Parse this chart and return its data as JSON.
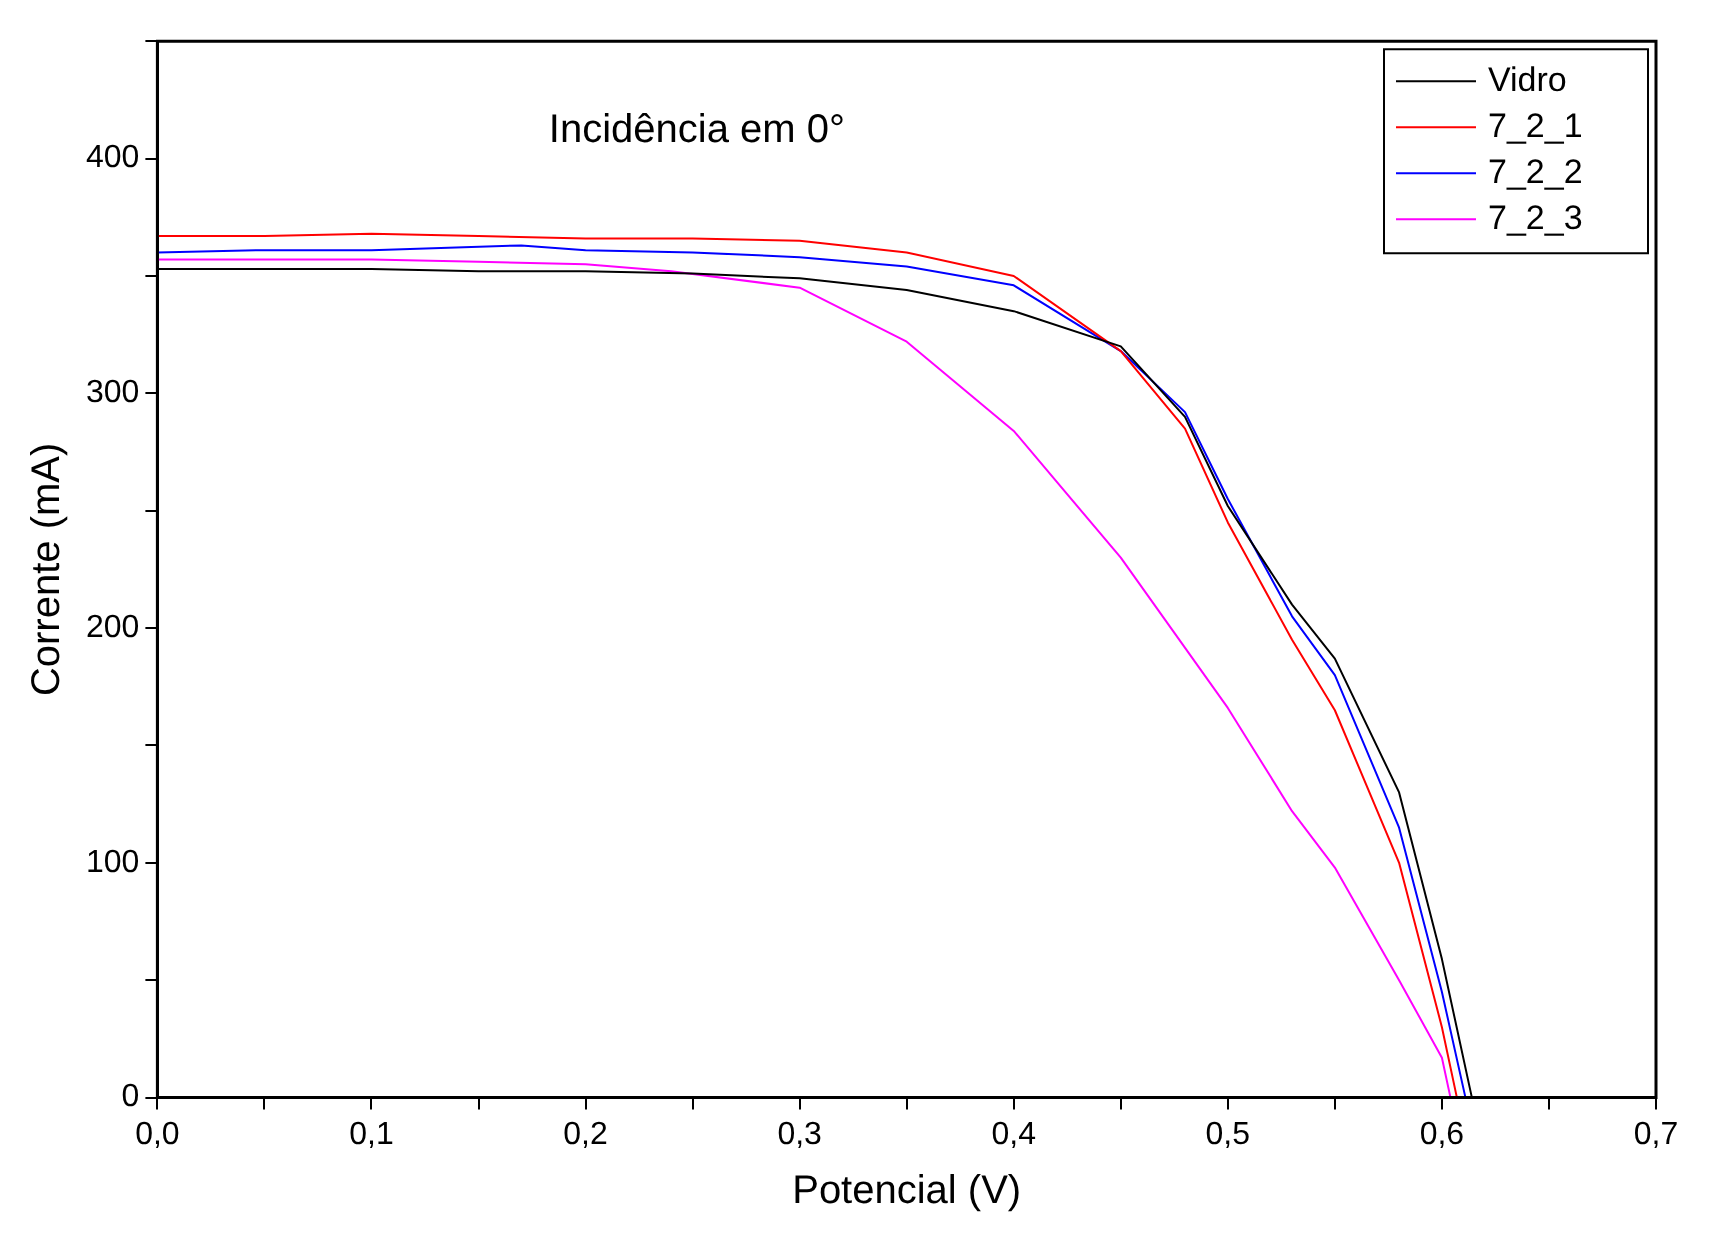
{
  "chart_data": {
    "type": "line",
    "xlabel": "Potencial (V)",
    "ylabel": "Corrente (mA)",
    "annotations": [
      "Incidência em 0°"
    ],
    "xlim": [
      0,
      0.7
    ],
    "ylim": [
      0,
      450
    ],
    "xticks": [
      {
        "value": 0,
        "label": "0,0"
      },
      {
        "value": 0.05,
        "label": null
      },
      {
        "value": 0.1,
        "label": "0,1"
      },
      {
        "value": 0.15,
        "label": null
      },
      {
        "value": 0.2,
        "label": "0,2"
      },
      {
        "value": 0.25,
        "label": null
      },
      {
        "value": 0.3,
        "label": "0,3"
      },
      {
        "value": 0.35,
        "label": null
      },
      {
        "value": 0.4,
        "label": "0,4"
      },
      {
        "value": 0.45,
        "label": null
      },
      {
        "value": 0.5,
        "label": "0,5"
      },
      {
        "value": 0.55,
        "label": null
      },
      {
        "value": 0.6,
        "label": "0,6"
      },
      {
        "value": 0.65,
        "label": null
      },
      {
        "value": 0.7,
        "label": "0,7"
      }
    ],
    "yticks": [
      0,
      {
        "value": 50,
        "label": null
      },
      100,
      {
        "value": 150,
        "label": null
      },
      200,
      {
        "value": 250,
        "label": null
      },
      300,
      {
        "value": 350,
        "label": null
      },
      400,
      {
        "value": 450,
        "label": null
      }
    ],
    "grid": false,
    "legend": "top right",
    "marker": "none",
    "line_style": "solid",
    "series": [
      {
        "name": "Vidro",
        "color": "#000000",
        "x": [
          0,
          0.05,
          0.1,
          0.15,
          0.2,
          0.25,
          0.3,
          0.35,
          0.4,
          0.45,
          0.48,
          0.5,
          0.53,
          0.55,
          0.58,
          0.6,
          0.614
        ],
        "values": [
          353,
          353,
          353,
          352,
          352,
          351,
          349,
          344,
          335,
          320,
          290,
          252,
          210,
          187,
          130,
          59,
          0
        ]
      },
      {
        "name": "7_2_1",
        "color": "#ff0000",
        "x": [
          0,
          0.05,
          0.1,
          0.15,
          0.2,
          0.25,
          0.3,
          0.35,
          0.4,
          0.45,
          0.48,
          0.5,
          0.53,
          0.55,
          0.58,
          0.6,
          0.607
        ],
        "values": [
          367,
          367,
          368,
          367,
          366,
          366,
          365,
          360,
          350,
          318,
          285,
          245,
          195,
          165,
          100,
          30,
          0
        ]
      },
      {
        "name": "7_2_2",
        "color": "#0000ff",
        "x": [
          0,
          0.05,
          0.1,
          0.17,
          0.2,
          0.25,
          0.3,
          0.35,
          0.4,
          0.45,
          0.48,
          0.5,
          0.53,
          0.55,
          0.58,
          0.6,
          0.611
        ],
        "values": [
          360,
          361,
          361,
          363,
          361,
          360,
          358,
          354,
          346,
          318,
          292,
          255,
          205,
          180,
          115,
          45,
          0
        ]
      },
      {
        "name": "7_2_3",
        "color": "#ff00ff",
        "x": [
          0,
          0.05,
          0.1,
          0.15,
          0.2,
          0.24,
          0.3,
          0.35,
          0.4,
          0.45,
          0.5,
          0.53,
          0.55,
          0.58,
          0.6,
          0.604
        ],
        "values": [
          357,
          357,
          357,
          356,
          355,
          352,
          345,
          322,
          284,
          230,
          166,
          122,
          98,
          50,
          17,
          0
        ]
      }
    ]
  }
}
